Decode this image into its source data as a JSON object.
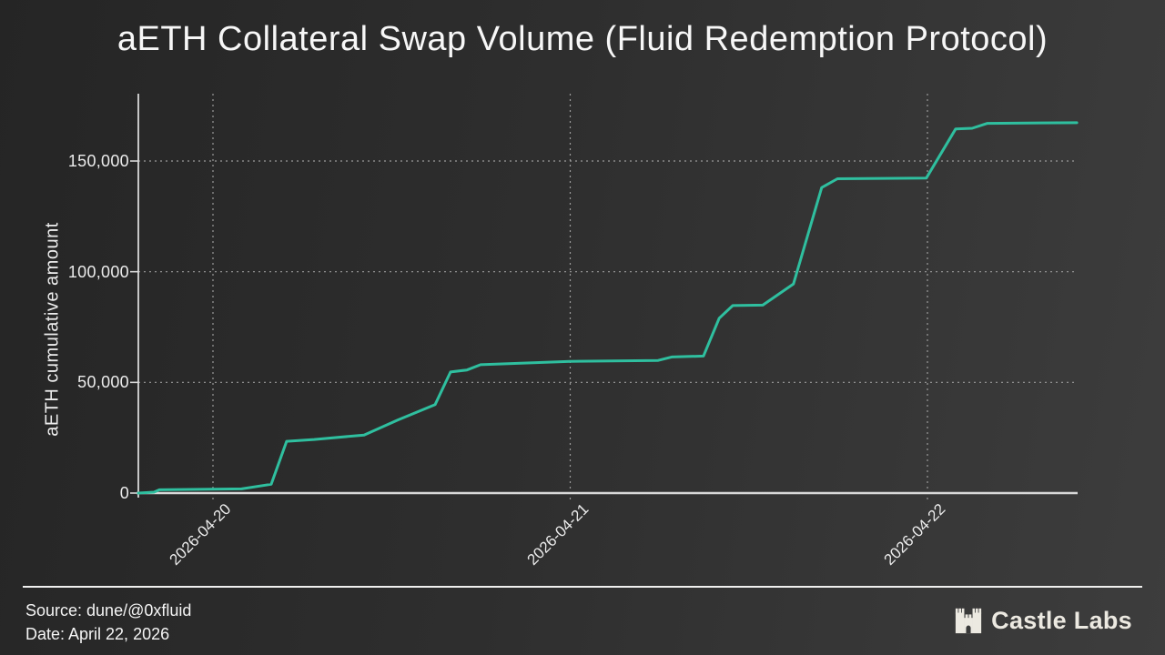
{
  "chart_data": {
    "type": "line",
    "title": "aETH Collateral Swap Volume (Fluid Redemption Protocol)",
    "xlabel": "",
    "ylabel": "aETH cumulative amount",
    "legend": false,
    "grid": "dotted",
    "x_unit": "days relative to 2026-04-20 00:00",
    "xlim": [
      -0.21,
      2.42
    ],
    "ylim": [
      0,
      180400
    ],
    "x_ticks": [
      {
        "t": 0,
        "label": "2026-04-20"
      },
      {
        "t": 1,
        "label": "2026-04-21"
      },
      {
        "t": 2,
        "label": "2026-04-22"
      }
    ],
    "y_ticks": [
      {
        "v": 0,
        "label": "0"
      },
      {
        "v": 50000,
        "label": "50,000"
      },
      {
        "v": 100000,
        "label": "100,000"
      },
      {
        "v": 150000,
        "label": "150,000"
      }
    ],
    "series": [
      {
        "color": "#2fbf9f",
        "points": [
          [
            -0.209,
            0
          ],
          [
            -0.165,
            400
          ],
          [
            -0.15,
            1500
          ],
          [
            0.08,
            1900
          ],
          [
            0.163,
            4000
          ],
          [
            0.206,
            23400
          ],
          [
            0.283,
            24200
          ],
          [
            0.423,
            26200
          ],
          [
            0.517,
            33000
          ],
          [
            0.622,
            40000
          ],
          [
            0.665,
            54700
          ],
          [
            0.711,
            55600
          ],
          [
            0.749,
            58000
          ],
          [
            1.0,
            59500
          ],
          [
            1.246,
            59900
          ],
          [
            1.284,
            61500
          ],
          [
            1.373,
            61900
          ],
          [
            1.417,
            79000
          ],
          [
            1.455,
            84700
          ],
          [
            1.539,
            84900
          ],
          [
            1.625,
            94500
          ],
          [
            1.704,
            138000
          ],
          [
            1.748,
            142000
          ],
          [
            1.997,
            142300
          ],
          [
            2.079,
            164500
          ],
          [
            2.125,
            164800
          ],
          [
            2.168,
            167000
          ],
          [
            2.418,
            167300
          ]
        ]
      }
    ]
  },
  "footer": {
    "source": "Source: dune/@0xfluid",
    "date": "Date: April 22, 2026",
    "logo_text": "Castle Labs"
  },
  "colors": {
    "background_start": "#252525",
    "background_end": "#3d3d3d",
    "line": "#2fbf9f",
    "axis": "#d9d9d9",
    "grid": "#9b9b9b",
    "text": "#f2f2f2",
    "logo": "#ece9e1"
  }
}
